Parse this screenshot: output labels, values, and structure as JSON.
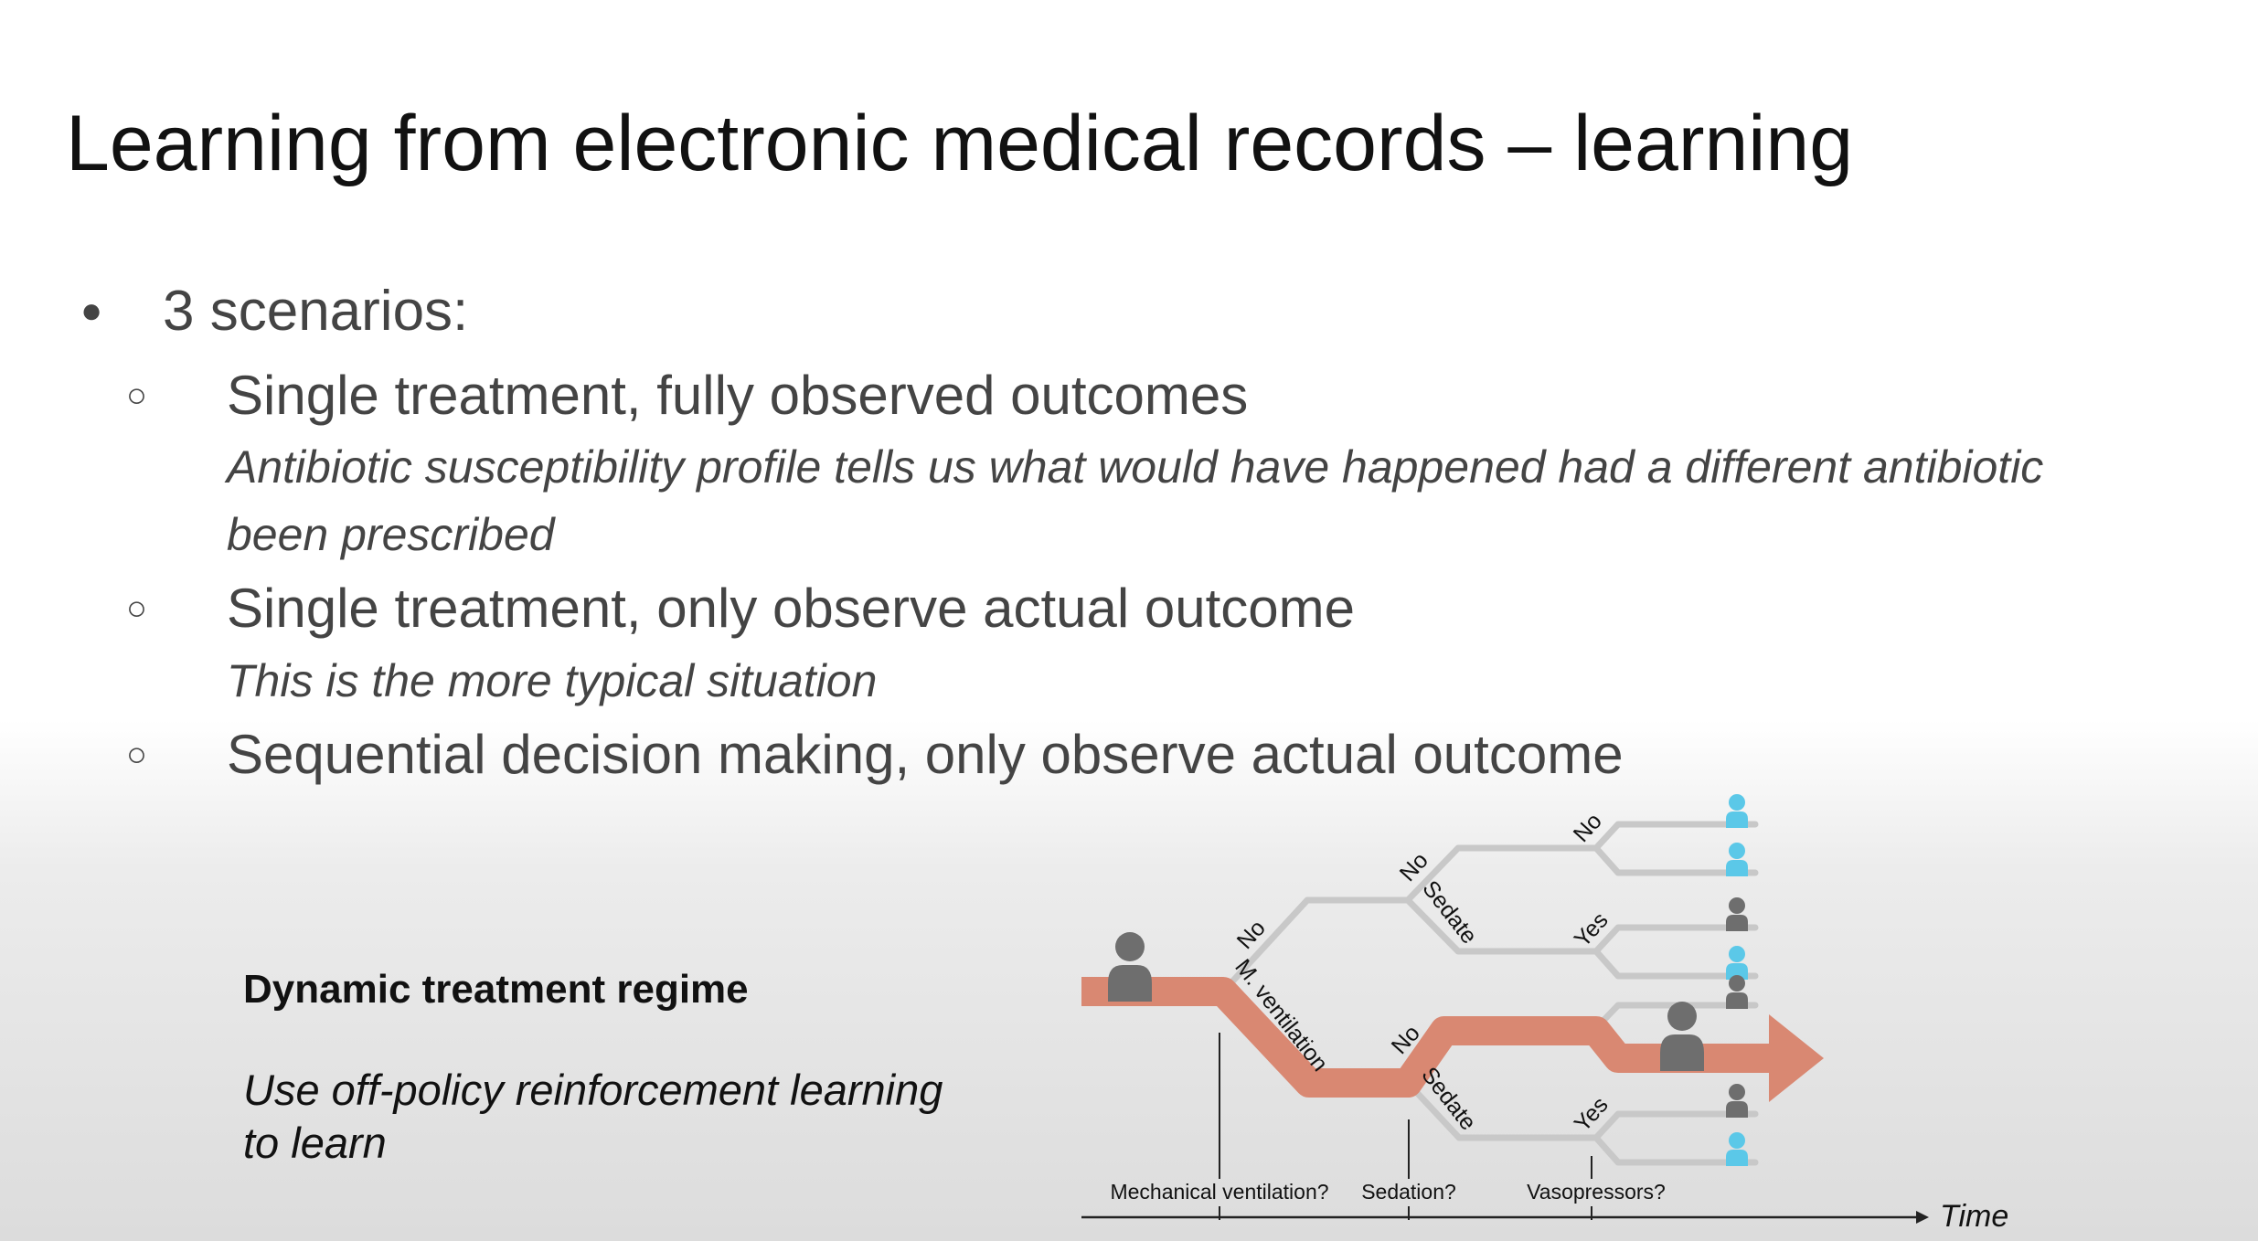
{
  "title": "Learning from electronic medical records – learning",
  "bullets": {
    "main_symbol": "●",
    "sub_symbol": "○",
    "main": "3 scenarios:",
    "sub": [
      {
        "text": "Single treatment, fully observed outcomes",
        "note_line1": "Antibiotic susceptibility profile tells us what would have happened had a different antibiotic",
        "note_line2": "been prescribed"
      },
      {
        "text": "Single treatment, only observe actual outcome",
        "note_line1": "This is the more typical situation"
      },
      {
        "text": "Sequential decision making, only observe actual outcome"
      }
    ]
  },
  "dtr": {
    "title": "Dynamic treatment regime",
    "desc_line1": "Use off-policy reinforcement learning",
    "desc_line2": "to learn"
  },
  "diagram": {
    "branch_labels": {
      "no_1": "No",
      "mv": "M. ventilation",
      "no_upper_sed": "No",
      "sedate_upper": "Sedate",
      "no_lower_sed": "No",
      "sedate_lower": "Sedate",
      "no_vaso_1": "No",
      "yes_vaso_2": "Yes",
      "yes_vaso_lower": "Yes"
    },
    "axis": {
      "decision_1": "Mechanical ventilation?",
      "decision_2": "Sedation?",
      "decision_3": "Vasopressors?",
      "time_label": "Time"
    },
    "colors": {
      "path": "#d98872",
      "branch": "#c8c8c8",
      "person_gray": "#6e6e6e",
      "person_blue": "#5bc8e8"
    },
    "outcomes": [
      "recovered",
      "recovered",
      "died",
      "recovered",
      "died",
      "died",
      "recovered"
    ]
  }
}
